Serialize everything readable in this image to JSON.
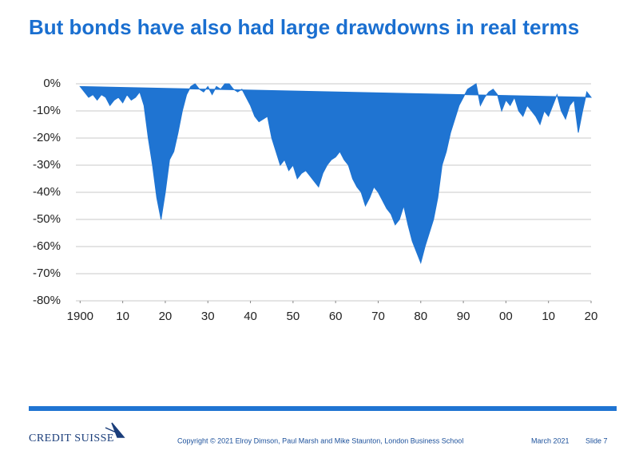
{
  "chart_data": {
    "type": "area",
    "title": "But bonds have also had large drawdowns in real terms",
    "color": "#1f74d2",
    "grid": true,
    "x": [
      1900,
      1901,
      1902,
      1903,
      1904,
      1905,
      1906,
      1907,
      1908,
      1909,
      1910,
      1911,
      1912,
      1913,
      1914,
      1915,
      1916,
      1917,
      1918,
      1919,
      1920,
      1921,
      1922,
      1923,
      1924,
      1925,
      1926,
      1927,
      1928,
      1929,
      1930,
      1931,
      1932,
      1933,
      1934,
      1935,
      1936,
      1937,
      1938,
      1939,
      1940,
      1941,
      1942,
      1943,
      1944,
      1945,
      1946,
      1947,
      1948,
      1949,
      1950,
      1951,
      1952,
      1953,
      1954,
      1955,
      1956,
      1957,
      1958,
      1959,
      1960,
      1961,
      1962,
      1963,
      1964,
      1965,
      1966,
      1967,
      1968,
      1969,
      1970,
      1971,
      1972,
      1973,
      1974,
      1975,
      1976,
      1977,
      1978,
      1979,
      1980,
      1981,
      1982,
      1983,
      1984,
      1985,
      1986,
      1987,
      1988,
      1989,
      1990,
      1991,
      1992,
      1993,
      1994,
      1995,
      1996,
      1997,
      1998,
      1999,
      2000,
      2001,
      2002,
      2003,
      2004,
      2005,
      2006,
      2007,
      2008,
      2009,
      2010,
      2011,
      2012,
      2013,
      2014,
      2015,
      2016,
      2017,
      2018,
      2019,
      2020
    ],
    "values": [
      -1,
      -3,
      -5,
      -4,
      -6,
      -4,
      -5,
      -8,
      -6,
      -5,
      -7,
      -4,
      -6,
      -5,
      -3,
      -8,
      -20,
      -30,
      -42,
      -50,
      -40,
      -28,
      -25,
      -18,
      -10,
      -4,
      -1,
      0,
      -2,
      -3,
      -1,
      -4,
      -1,
      -2,
      0,
      0,
      -2,
      -3,
      -2,
      -5,
      -8,
      -12,
      -14,
      -13,
      -12,
      -20,
      -25,
      -30,
      -28,
      -32,
      -30,
      -35,
      -33,
      -32,
      -34,
      -36,
      -38,
      -33,
      -30,
      -28,
      -27,
      -25,
      -28,
      -30,
      -35,
      -38,
      -40,
      -45,
      -42,
      -38,
      -40,
      -43,
      -46,
      -48,
      -52,
      -50,
      -45,
      -52,
      -58,
      -62,
      -66,
      -60,
      -55,
      -50,
      -42,
      -30,
      -25,
      -18,
      -13,
      -8,
      -5,
      -2,
      -1,
      0,
      -8,
      -5,
      -3,
      -2,
      -4,
      -10,
      -6,
      -8,
      -5,
      -10,
      -12,
      -8,
      -10,
      -12,
      -15,
      -10,
      -12,
      -8,
      -4,
      -10,
      -13,
      -8,
      -6,
      -18,
      -10,
      -3,
      -5
    ],
    "xlim": [
      1899,
      2020
    ],
    "xticks": [
      1900,
      {
        "value": 1910,
        "label": "10"
      },
      {
        "value": 1920,
        "label": "20"
      },
      {
        "value": 1930,
        "label": "30"
      },
      {
        "value": 1940,
        "label": "40"
      },
      {
        "value": 1950,
        "label": "50"
      },
      {
        "value": 1960,
        "label": "60"
      },
      {
        "value": 1970,
        "label": "70"
      },
      {
        "value": 1980,
        "label": "80"
      },
      {
        "value": 1990,
        "label": "90"
      },
      {
        "value": 2000,
        "label": "00"
      },
      {
        "value": 2010,
        "label": "10"
      },
      {
        "value": 2020,
        "label": "20"
      }
    ],
    "ylim": [
      -80,
      0
    ],
    "yticks": [
      {
        "value": 0,
        "label": "0%"
      },
      {
        "value": -10,
        "label": "-10%"
      },
      {
        "value": -20,
        "label": "-20%"
      },
      {
        "value": -30,
        "label": "-30%"
      },
      {
        "value": -40,
        "label": "-40%"
      },
      {
        "value": -50,
        "label": "-50%"
      },
      {
        "value": -60,
        "label": "-60%"
      },
      {
        "value": -70,
        "label": "-70%"
      },
      {
        "value": -80,
        "label": "-80%"
      }
    ]
  },
  "footer": {
    "logo": "CREDIT SUISSE",
    "copyright": "Copyright © 2021 Elroy Dimson, Paul Marsh and Mike Staunton, London Business School",
    "date": "March 2021",
    "slide": "Slide 7"
  }
}
